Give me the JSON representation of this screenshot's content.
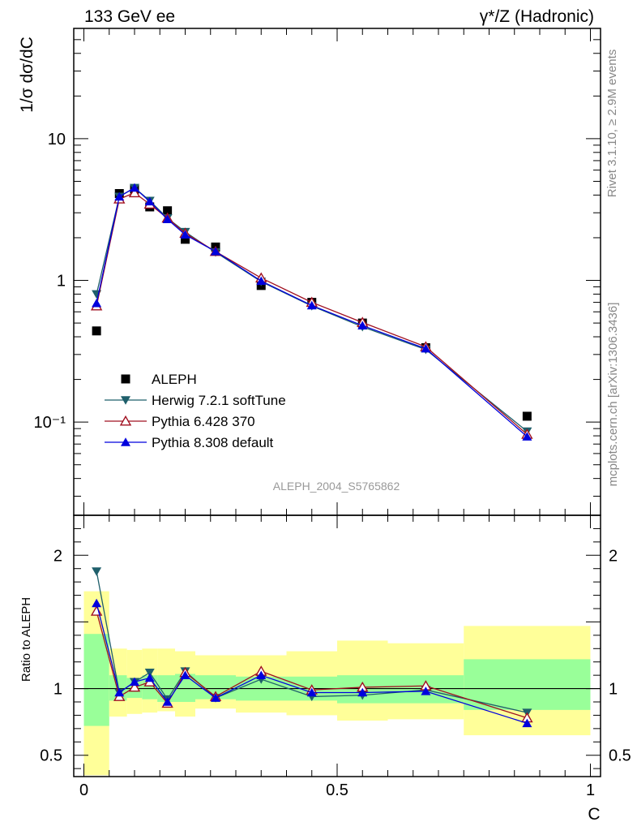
{
  "header": {
    "left": "133 GeV ee",
    "right": "γ*/Z (Hadronic)"
  },
  "side_text": {
    "rivet": "Rivet 3.1.10, ≥ 2.9M events",
    "mcplots": "mcplots.cern.ch [arXiv:1306.3436]"
  },
  "chart_data": [
    {
      "type": "line",
      "panel": "main",
      "ylabel": "1/σ  dσ/dC",
      "yscale": "log",
      "xlim": [
        -0.02,
        1.02
      ],
      "ylim": [
        0.022,
        60
      ],
      "yticks": [
        0.1,
        1,
        10
      ],
      "ytick_labels": [
        "10⁻¹",
        "1",
        "10"
      ],
      "watermark": "ALEPH_2004_S5765862",
      "legend_position": "center-left",
      "series": [
        {
          "name": "ALEPH",
          "marker": "square",
          "color": "#000000",
          "x": [
            0.025,
            0.07,
            0.1,
            0.13,
            0.165,
            0.2,
            0.26,
            0.35,
            0.45,
            0.55,
            0.675,
            0.875
          ],
          "y": [
            0.44,
            4.1,
            4.4,
            3.3,
            3.1,
            1.95,
            1.72,
            0.92,
            0.7,
            0.5,
            0.335,
            0.11
          ]
        },
        {
          "name": "Herwig 7.2.1 softTune",
          "marker": "triangle-down",
          "color": "#1f5f6b",
          "x": [
            0.025,
            0.07,
            0.1,
            0.13,
            0.165,
            0.2,
            0.26,
            0.35,
            0.45,
            0.55,
            0.675,
            0.875
          ],
          "y": [
            0.8,
            3.9,
            4.5,
            3.65,
            2.75,
            2.2,
            1.58,
            0.98,
            0.66,
            0.47,
            0.325,
            0.086
          ]
        },
        {
          "name": "Pythia 6.428 370",
          "marker": "triangle-up-open",
          "color": "#a01020",
          "x": [
            0.025,
            0.07,
            0.1,
            0.13,
            0.165,
            0.2,
            0.26,
            0.35,
            0.45,
            0.55,
            0.675,
            0.875
          ],
          "y": [
            0.66,
            3.75,
            4.15,
            3.45,
            2.75,
            2.15,
            1.6,
            1.04,
            0.7,
            0.505,
            0.34,
            0.082
          ]
        },
        {
          "name": "Pythia 8.308 default",
          "marker": "triangle-up",
          "color": "#0000dd",
          "x": [
            0.025,
            0.07,
            0.1,
            0.13,
            0.165,
            0.2,
            0.26,
            0.35,
            0.45,
            0.55,
            0.675,
            0.875
          ],
          "y": [
            0.69,
            3.9,
            4.5,
            3.6,
            2.7,
            2.1,
            1.6,
            0.99,
            0.665,
            0.48,
            0.33,
            0.079
          ]
        }
      ]
    },
    {
      "type": "line",
      "panel": "ratio",
      "xlabel": "C",
      "ylabel": "Ratio to ALEPH",
      "xlim": [
        -0.02,
        1.02
      ],
      "ylim": [
        0.34,
        2.3
      ],
      "xticks": [
        0,
        0.5,
        1
      ],
      "xtick_labels": [
        "0",
        "0.5",
        "1"
      ],
      "yticks": [
        0.5,
        1,
        2
      ],
      "ytick_labels": [
        "0.5",
        "1",
        "2"
      ],
      "reference_line": 1,
      "bands": {
        "edges": [
          0,
          0.05,
          0.085,
          0.115,
          0.145,
          0.18,
          0.22,
          0.3,
          0.4,
          0.5,
          0.6,
          0.75,
          1.0
        ],
        "inner_color": "#99ff99",
        "outer_color": "#ffff99",
        "inner_lo": [
          0.72,
          0.91,
          0.93,
          0.92,
          0.9,
          0.9,
          0.92,
          0.91,
          0.91,
          0.89,
          0.89,
          0.84
        ],
        "inner_hi": [
          1.41,
          1.1,
          1.08,
          1.1,
          1.1,
          1.11,
          1.1,
          1.09,
          1.09,
          1.1,
          1.1,
          1.22
        ],
        "outer_lo": [
          0.35,
          0.79,
          0.81,
          0.82,
          0.83,
          0.79,
          0.85,
          0.82,
          0.8,
          0.76,
          0.77,
          0.65
        ],
        "outer_hi": [
          1.73,
          1.3,
          1.29,
          1.3,
          1.3,
          1.28,
          1.25,
          1.25,
          1.28,
          1.36,
          1.34,
          1.47
        ]
      },
      "series": [
        {
          "name": "Herwig 7.2.1 softTune",
          "marker": "triangle-down",
          "color": "#1f5f6b",
          "x": [
            0.025,
            0.07,
            0.1,
            0.13,
            0.165,
            0.2,
            0.26,
            0.35,
            0.45,
            0.55,
            0.675,
            0.875
          ],
          "y": [
            1.88,
            0.97,
            1.05,
            1.12,
            0.92,
            1.13,
            0.93,
            1.07,
            0.94,
            0.95,
            0.99,
            0.82
          ]
        },
        {
          "name": "Pythia 6.428 370",
          "marker": "triangle-up-open",
          "color": "#a01020",
          "x": [
            0.025,
            0.07,
            0.1,
            0.13,
            0.165,
            0.2,
            0.26,
            0.35,
            0.45,
            0.55,
            0.675,
            0.875
          ],
          "y": [
            1.58,
            0.94,
            1.01,
            1.05,
            0.89,
            1.12,
            0.94,
            1.13,
            0.99,
            1.01,
            1.02,
            0.78
          ]
        },
        {
          "name": "Pythia 8.308 default",
          "marker": "triangle-up",
          "color": "#0000dd",
          "x": [
            0.025,
            0.07,
            0.1,
            0.13,
            0.165,
            0.2,
            0.26,
            0.35,
            0.45,
            0.55,
            0.675,
            0.875
          ],
          "y": [
            1.64,
            0.97,
            1.05,
            1.08,
            0.9,
            1.1,
            0.93,
            1.1,
            0.97,
            0.97,
            0.98,
            0.74
          ]
        }
      ]
    }
  ]
}
